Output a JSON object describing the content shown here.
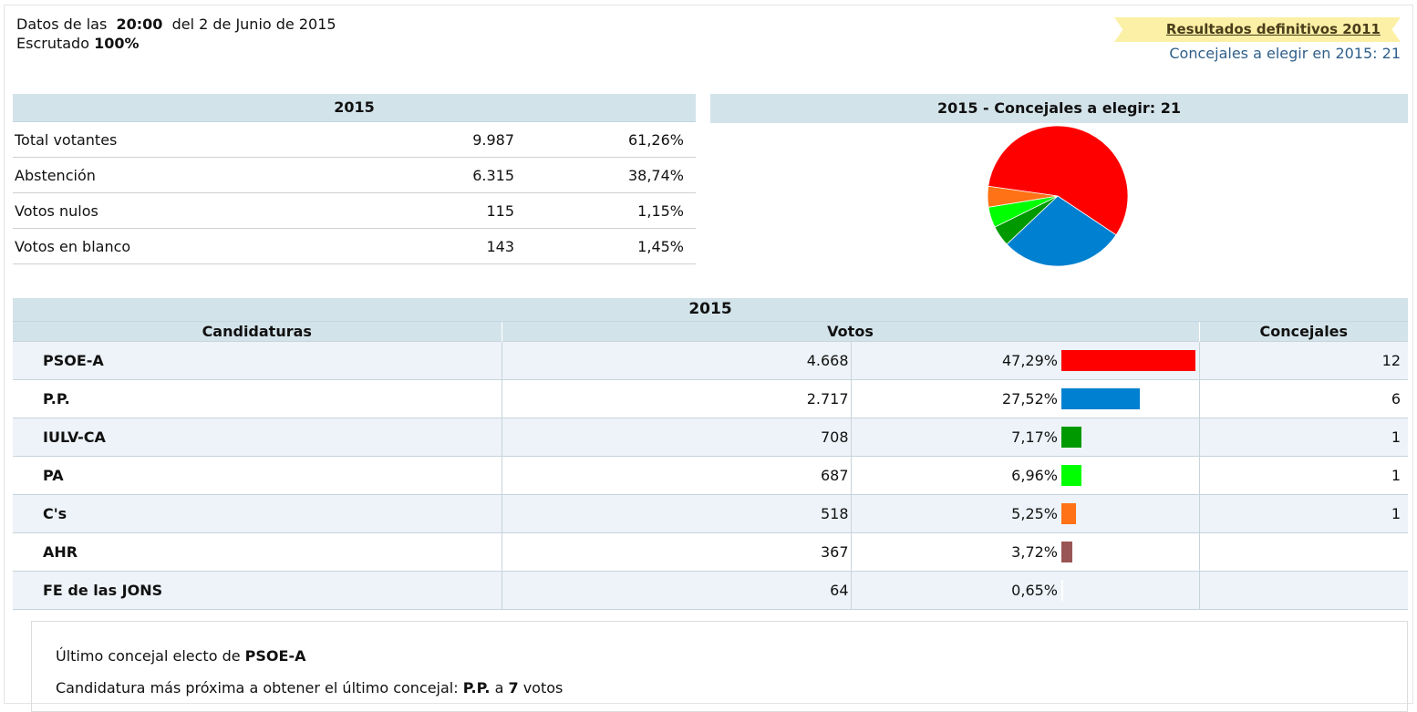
{
  "header": {
    "datos_prefix": "Datos de las",
    "hora": "20:00",
    "fecha": "del 2 de Junio de 2015",
    "escrutado_label": "Escrutado",
    "escrutado_value": "100%",
    "link_2011": "Resultados definitivos 2011",
    "concejales_elegir": "Concejales a elegir en 2015: 21"
  },
  "summary": {
    "title": "2015",
    "rows": [
      {
        "label": "Total votantes",
        "value": "9.987",
        "pct": "61,26%"
      },
      {
        "label": "Abstención",
        "value": "6.315",
        "pct": "38,74%"
      },
      {
        "label": "Votos nulos",
        "value": "115",
        "pct": "1,15%"
      },
      {
        "label": "Votos en blanco",
        "value": "143",
        "pct": "1,45%"
      }
    ]
  },
  "pie": {
    "title": "2015 - Concejales a elegir: 21",
    "chart_data": {
      "type": "pie",
      "title": "2015 - Concejales a elegir: 21",
      "slices": [
        {
          "label": "PSOE-A",
          "value": 12,
          "color": "#ff0000"
        },
        {
          "label": "P.P.",
          "value": 6,
          "color": "#0080d0"
        },
        {
          "label": "IULV-CA",
          "value": 1,
          "color": "#009900"
        },
        {
          "label": "PA",
          "value": 1,
          "color": "#00ff00"
        },
        {
          "label": "C's",
          "value": 1,
          "color": "#ff7215"
        }
      ]
    }
  },
  "results": {
    "title": "2015",
    "col_candidaturas": "Candidaturas",
    "col_votos": "Votos",
    "col_concejales": "Concejales",
    "rows": [
      {
        "name": "PSOE-A",
        "votes": "4.668",
        "pct": "47,29%",
        "pct_value": 47.29,
        "color": "#ff0000",
        "concejales": "12"
      },
      {
        "name": "P.P.",
        "votes": "2.717",
        "pct": "27,52%",
        "pct_value": 27.52,
        "color": "#0080d0",
        "concejales": "6"
      },
      {
        "name": "IULV-CA",
        "votes": "708",
        "pct": "7,17%",
        "pct_value": 7.17,
        "color": "#009900",
        "concejales": "1"
      },
      {
        "name": "PA",
        "votes": "687",
        "pct": "6,96%",
        "pct_value": 6.96,
        "color": "#00ff00",
        "concejales": "1"
      },
      {
        "name": "C's",
        "votes": "518",
        "pct": "5,25%",
        "pct_value": 5.25,
        "color": "#ff7215",
        "concejales": "1"
      },
      {
        "name": "AHR",
        "votes": "367",
        "pct": "3,72%",
        "pct_value": 3.72,
        "color": "#995555",
        "concejales": ""
      },
      {
        "name": "FE de las JONS",
        "votes": "64",
        "pct": "0,65%",
        "pct_value": 0.65,
        "color": "#ffffff",
        "concejales": ""
      }
    ]
  },
  "info": {
    "ultimo_prefix": "Último concejal electo de",
    "ultimo_party": "PSOE-A",
    "proxima_prefix": "Candidatura más próxima a obtener el último concejal:",
    "proxima_party": "P.P.",
    "a": "a",
    "votos_num": "7",
    "votos_word": "votos"
  }
}
